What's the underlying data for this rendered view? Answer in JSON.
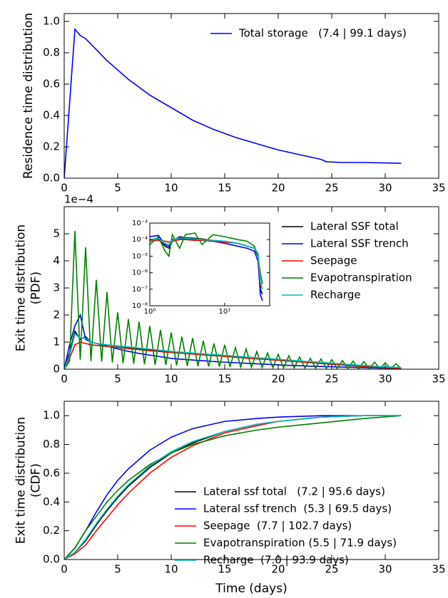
{
  "chart_data": [
    {
      "type": "line",
      "ylabel": [
        "Residence time distribution"
      ],
      "legend": "upper right",
      "x": [
        0,
        1,
        1.5,
        2,
        3,
        4,
        5,
        6,
        8,
        10,
        12,
        14,
        16,
        18,
        20,
        22,
        24,
        24.5,
        26,
        28,
        31.5
      ],
      "series": [
        {
          "name": "Total storage   (7.4 | 99.1 days)",
          "color": "#0000ff",
          "values": [
            0,
            0.95,
            0.91,
            0.89,
            0.82,
            0.75,
            0.69,
            0.63,
            0.53,
            0.45,
            0.37,
            0.31,
            0.26,
            0.22,
            0.18,
            0.15,
            0.12,
            0.105,
            0.1,
            0.1,
            0.095
          ]
        }
      ],
      "xlim": [
        0,
        35
      ],
      "xticks": [
        0,
        5,
        10,
        15,
        20,
        25,
        30,
        35
      ],
      "ylim": [
        0,
        1.05
      ],
      "yticks": [
        {
          "value": 0,
          "label": "0.0"
        },
        {
          "value": 0.2,
          "label": "0.2"
        },
        {
          "value": 0.4,
          "label": "0.4"
        },
        {
          "value": 0.6,
          "label": "0.6"
        },
        {
          "value": 0.8,
          "label": "0.8"
        },
        {
          "value": 1.0,
          "label": "1.0"
        }
      ]
    },
    {
      "type": "line",
      "ylabel": [
        "Exit time distribution",
        "(PDF)"
      ],
      "y_offset_label": "1e−4",
      "legend": "upper right",
      "x": [
        0,
        0.5,
        1,
        1.5,
        2,
        2.5,
        3,
        3.5,
        4,
        4.5,
        5,
        5.5,
        6,
        6.5,
        7,
        7.5,
        8,
        8.5,
        9,
        9.5,
        10,
        10.5,
        11,
        11.5,
        12,
        12.5,
        13,
        13.5,
        14,
        14.5,
        15,
        15.5,
        16,
        16.5,
        17,
        17.5,
        18,
        18.5,
        19,
        19.5,
        20,
        20.5,
        21,
        21.5,
        22,
        22.5,
        23,
        23.5,
        24,
        24.5,
        25,
        25.5,
        26,
        26.5,
        27,
        27.5,
        28,
        28.5,
        29,
        29.5,
        30,
        30.5,
        31,
        31.5
      ],
      "series": [
        {
          "name": "Lateral SSF total",
          "color": "#000000",
          "values": [
            0,
            0.6,
            1.4,
            1.1,
            1.2,
            1.0,
            0.95,
            0.92,
            0.9,
            0.87,
            0.85,
            0.83,
            0.8,
            0.78,
            0.76,
            0.74,
            0.72,
            0.7,
            0.68,
            0.66,
            0.64,
            0.62,
            0.61,
            0.59,
            0.58,
            0.56,
            0.55,
            0.53,
            0.52,
            0.51,
            0.49,
            0.48,
            0.46,
            0.45,
            0.43,
            0.42,
            0.4,
            0.39,
            0.38,
            0.36,
            0.35,
            0.33,
            0.32,
            0.3,
            0.29,
            0.27,
            0.26,
            0.25,
            0.23,
            0.22,
            0.2,
            0.19,
            0.18,
            0.16,
            0.15,
            0.13,
            0.12,
            0.11,
            0.09,
            0.08,
            0.07,
            0.06,
            0.05,
            0.05
          ]
        },
        {
          "name": "Lateral SSF trench",
          "color": "#0000ff",
          "values": [
            0,
            0.9,
            1.6,
            2.0,
            1.1,
            1.0,
            0.95,
            0.9,
            0.85,
            0.8,
            0.75,
            0.7,
            0.66,
            0.62,
            0.58,
            0.55,
            0.52,
            0.49,
            0.46,
            0.43,
            0.4,
            0.38,
            0.37,
            0.35,
            0.34,
            0.32,
            0.31,
            0.3,
            0.28,
            0.27,
            0.26,
            0.25,
            0.24,
            0.23,
            0.22,
            0.21,
            0.2,
            0.19,
            0.18,
            0.17,
            0.16,
            0.15,
            0.14,
            0.14,
            0.13,
            0.12,
            0.11,
            0.11,
            0.1,
            0.09,
            0.09,
            0.08,
            0.08,
            0.07,
            0.07,
            0.06,
            0.06,
            0.05,
            0.05,
            0.04,
            0.04,
            0.03,
            0.03,
            0.02
          ]
        },
        {
          "name": "Seepage",
          "color": "#ff0000",
          "values": [
            0,
            0.4,
            0.9,
            1.0,
            0.95,
            0.9,
            0.88,
            0.86,
            0.84,
            0.82,
            0.8,
            0.78,
            0.76,
            0.74,
            0.72,
            0.7,
            0.68,
            0.67,
            0.65,
            0.63,
            0.62,
            0.6,
            0.59,
            0.57,
            0.56,
            0.54,
            0.53,
            0.51,
            0.5,
            0.49,
            0.47,
            0.46,
            0.44,
            0.43,
            0.41,
            0.4,
            0.38,
            0.37,
            0.36,
            0.34,
            0.33,
            0.31,
            0.3,
            0.28,
            0.27,
            0.25,
            0.24,
            0.23,
            0.21,
            0.2,
            0.18,
            0.17,
            0.16,
            0.14,
            0.13,
            0.11,
            0.1,
            0.09,
            0.07,
            0.06,
            0.05,
            0.04,
            0.04,
            0.03
          ]
        },
        {
          "name": "Evapotranspiration",
          "color": "#008000",
          "values": [
            0,
            0.3,
            5.1,
            0.35,
            4.5,
            0.3,
            3.3,
            0.28,
            2.85,
            0.25,
            2.1,
            0.22,
            1.85,
            0.2,
            1.75,
            0.18,
            1.6,
            0.16,
            1.45,
            0.15,
            1.35,
            0.14,
            1.2,
            0.12,
            1.15,
            0.11,
            1.05,
            0.1,
            0.95,
            0.09,
            0.9,
            0.08,
            0.8,
            0.08,
            0.75,
            0.07,
            0.65,
            0.06,
            0.6,
            0.06,
            0.55,
            0.05,
            0.5,
            0.05,
            0.45,
            0.04,
            0.4,
            0.04,
            0.38,
            0.03,
            0.35,
            0.03,
            0.32,
            0.03,
            0.3,
            0.02,
            0.28,
            0.02,
            0.26,
            0.02,
            0.24,
            0.02,
            0.2,
            0.02
          ]
        },
        {
          "name": "Recharge",
          "color": "#00bfbf",
          "values": [
            0,
            0.5,
            1.3,
            1.15,
            1.15,
            1.0,
            0.95,
            0.93,
            0.9,
            0.88,
            0.86,
            0.84,
            0.82,
            0.8,
            0.78,
            0.76,
            0.74,
            0.72,
            0.7,
            0.68,
            0.66,
            0.64,
            0.63,
            0.61,
            0.6,
            0.58,
            0.57,
            0.55,
            0.54,
            0.53,
            0.51,
            0.5,
            0.48,
            0.47,
            0.45,
            0.44,
            0.42,
            0.41,
            0.4,
            0.38,
            0.37,
            0.35,
            0.34,
            0.32,
            0.31,
            0.29,
            0.28,
            0.27,
            0.25,
            0.24,
            0.22,
            0.21,
            0.2,
            0.18,
            0.17,
            0.15,
            0.14,
            0.13,
            0.11,
            0.1,
            0.09,
            0.08,
            0.07,
            0.06
          ]
        }
      ],
      "xlim": [
        0,
        35
      ],
      "xticks": [
        0,
        5,
        10,
        15,
        20,
        25,
        30,
        35
      ],
      "ylim": [
        0,
        6
      ],
      "yticks": [
        0,
        1,
        2,
        3,
        4,
        5
      ]
    },
    {
      "type": "line",
      "log_x": true,
      "log_y": true,
      "x": [
        1,
        1.3,
        1.6,
        1.8,
        2,
        2.5,
        3,
        4,
        5,
        7,
        10,
        15,
        20,
        25,
        28,
        30,
        32
      ],
      "series": [
        {
          "color": "#000000",
          "values": [
            0.0001,
            0.00011,
            4e-05,
            3e-05,
            8e-05,
            0.00015,
            0.00013,
            0.00012,
            0.00011,
            9e-05,
            8e-05,
            6e-05,
            4e-05,
            3e-05,
            1e-05,
            1e-07,
            5e-08
          ]
        },
        {
          "color": "#0000ff",
          "values": [
            0.00015,
            0.00018,
            5e-05,
            4e-05,
            0.0001,
            0.00012,
            0.00011,
            0.0001,
            9e-05,
            8e-05,
            6e-05,
            4e-05,
            3e-05,
            2e-05,
            5e-06,
            5e-08,
            2e-08
          ]
        },
        {
          "color": "#ff0000",
          "values": [
            8e-05,
            9e-05,
            8e-05,
            7e-05,
            8e-05,
            0.0001,
            0.0001,
            9e-05,
            9e-05,
            8e-05,
            7e-05,
            6e-05,
            4e-05,
            3e-05,
            1e-05,
            2e-07,
            1e-07
          ]
        },
        {
          "color": "#008000",
          "values": [
            5e-05,
            0.00015,
            2e-05,
            1e-05,
            0.0002,
            3e-05,
            0.0002,
            0.00025,
            5e-05,
            0.0002,
            0.00015,
            0.0001,
            8e-05,
            4e-05,
            1e-05,
            1e-06,
            2e-07
          ]
        },
        {
          "color": "#00bfbf",
          "values": [
            0.0001,
            0.00012,
            6e-05,
            5e-05,
            9e-05,
            0.00013,
            0.00012,
            0.00011,
            0.0001,
            9e-05,
            8e-05,
            6e-05,
            4e-05,
            3e-05,
            1.5e-05,
            3e-07,
            1e-07
          ]
        }
      ],
      "xlim": [
        1,
        40
      ],
      "xticks": [
        {
          "value": 1,
          "label": "10⁰"
        },
        {
          "value": 10,
          "label": "10¹"
        }
      ],
      "ylim": [
        1e-08,
        0.001
      ],
      "yticks": [
        {
          "value": 1e-08,
          "label": "10⁻⁸"
        },
        {
          "value": 1e-07,
          "label": "10⁻⁷"
        },
        {
          "value": 1e-06,
          "label": "10⁻⁶"
        },
        {
          "value": 1e-05,
          "label": "10⁻⁵"
        },
        {
          "value": 0.0001,
          "label": "10⁻⁴"
        },
        {
          "value": 0.001,
          "label": "10⁻³"
        }
      ]
    },
    {
      "type": "line",
      "ylabel": [
        "Exit time distribution",
        "(CDF)"
      ],
      "xlabel": "Time (days)",
      "legend": "lower right",
      "x": [
        0,
        1,
        2,
        3,
        4,
        5,
        6,
        8,
        10,
        12,
        15,
        18,
        20,
        24,
        28,
        31.5
      ],
      "series": [
        {
          "name": "Lateral ssf total   (7.2 | 95.6 days)",
          "color": "#000000",
          "values": [
            0,
            0.05,
            0.13,
            0.24,
            0.34,
            0.43,
            0.51,
            0.64,
            0.74,
            0.81,
            0.89,
            0.94,
            0.96,
            0.99,
            1.0,
            1.0
          ]
        },
        {
          "name": "Lateral ssf trench  (5.3 | 69.5 days)",
          "color": "#0000ff",
          "values": [
            0,
            0.08,
            0.2,
            0.33,
            0.45,
            0.55,
            0.63,
            0.76,
            0.85,
            0.91,
            0.96,
            0.98,
            0.99,
            1.0,
            1.0,
            1.0
          ]
        },
        {
          "name": "Seepage  (7.7 | 102.7 days)",
          "color": "#ff0000",
          "values": [
            0,
            0.04,
            0.1,
            0.2,
            0.29,
            0.38,
            0.46,
            0.6,
            0.71,
            0.79,
            0.88,
            0.93,
            0.96,
            0.99,
            1.0,
            1.0
          ]
        },
        {
          "name": "Evapotranspiration (5.5 | 71.9 days)",
          "color": "#008000",
          "values": [
            0,
            0.08,
            0.2,
            0.3,
            0.4,
            0.48,
            0.55,
            0.66,
            0.74,
            0.8,
            0.86,
            0.9,
            0.92,
            0.95,
            0.98,
            1.0
          ]
        },
        {
          "name": "Recharge  (7.0 | 93.9 days)",
          "color": "#00bfbf",
          "values": [
            0,
            0.05,
            0.14,
            0.25,
            0.35,
            0.44,
            0.52,
            0.65,
            0.75,
            0.82,
            0.89,
            0.94,
            0.96,
            0.99,
            1.0,
            1.0
          ]
        }
      ],
      "xlim": [
        0,
        35
      ],
      "xticks": [
        0,
        5,
        10,
        15,
        20,
        25,
        30,
        35
      ],
      "ylim": [
        0,
        1.1
      ],
      "yticks": [
        {
          "value": 0,
          "label": "0.0"
        },
        {
          "value": 0.2,
          "label": "0.2"
        },
        {
          "value": 0.4,
          "label": "0.4"
        },
        {
          "value": 0.6,
          "label": "0.6"
        },
        {
          "value": 0.8,
          "label": "0.8"
        },
        {
          "value": 1.0,
          "label": "1.0"
        }
      ]
    }
  ]
}
